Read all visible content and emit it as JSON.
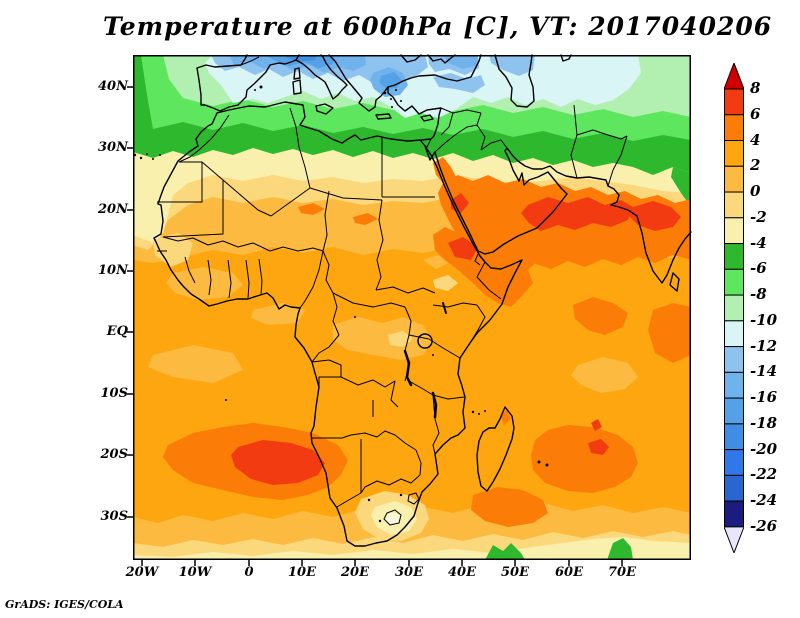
{
  "title": "Temperature at 600hPa [C], VT: 2017040206",
  "attribution": "GrADS: IGES/COLA",
  "map": {
    "region": "Africa, Mediterranean, Arabia, Indian Ocean",
    "variable": "Temperature at 600hPa",
    "units": "C",
    "valid_time": "2017040206",
    "x_axis": {
      "labels": [
        "20W",
        "10W",
        "0",
        "10E",
        "20E",
        "30E",
        "40E",
        "50E",
        "60E",
        "70E"
      ]
    },
    "y_axis": {
      "labels": [
        "40N",
        "30N",
        "20N",
        "10N",
        "EQ",
        "10S",
        "20S",
        "30S"
      ]
    }
  },
  "colorbar": {
    "tick_labels": [
      "8",
      "6",
      "4",
      "2",
      "0",
      "-2",
      "-4",
      "-6",
      "-8",
      "-10",
      "-12",
      "-14",
      "-16",
      "-18",
      "-20",
      "-22",
      "-24",
      "-26"
    ],
    "segment_colors_top_to_bottom": [
      "#f23b10",
      "#fb7d08",
      "#fea610",
      "#fcba40",
      "#fcd87c",
      "#faf0ae",
      "#2db82d",
      "#5fe65f",
      "#b2f0b2",
      "#daf5f5",
      "#8fc3ef",
      "#70b2ec",
      "#55a1e8",
      "#3f8ee3",
      "#2e78ea",
      "#2a66d0",
      "#1c1c80"
    ],
    "arrow_top_color": "#d10000",
    "arrow_bottom_color": "#e9e5fb"
  }
}
